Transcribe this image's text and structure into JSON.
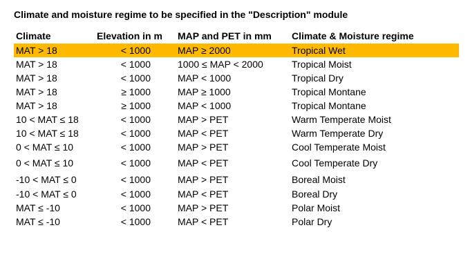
{
  "title": "Climate and moisture regime to be specified in the \"Description\" module",
  "headers": {
    "climate": "Climate",
    "elevation": "Elevation in m",
    "map_pet": "MAP and PET in mm",
    "regime": "Climate & Moisture regime"
  },
  "rows": [
    {
      "climate": "MAT > 18",
      "elevation": "< 1000",
      "map_pet": "MAP ≥ 2000",
      "regime": "Tropical Wet"
    },
    {
      "climate": "MAT > 18",
      "elevation": "< 1000",
      "map_pet": "1000 ≤ MAP < 2000",
      "regime": "Tropical Moist"
    },
    {
      "climate": "MAT > 18",
      "elevation": "< 1000",
      "map_pet": "MAP < 1000",
      "regime": "Tropical Dry"
    },
    {
      "climate": "MAT > 18",
      "elevation": "≥ 1000",
      "map_pet": "MAP ≥ 1000",
      "regime": "Tropical Montane"
    },
    {
      "climate": "MAT > 18",
      "elevation": "≥ 1000",
      "map_pet": "MAP < 1000",
      "regime": "Tropical Montane"
    },
    {
      "climate": "10 < MAT ≤ 18",
      "elevation": "< 1000",
      "map_pet": "MAP > PET",
      "regime": "Warm Temperate Moist"
    },
    {
      "climate": "10 < MAT ≤ 18",
      "elevation": "< 1000",
      "map_pet": "MAP < PET",
      "regime": "Warm Temperate Dry"
    },
    {
      "climate": "0 < MAT ≤ 10",
      "elevation": "< 1000",
      "map_pet": "MAP > PET",
      "regime": "Cool Temperate Moist"
    },
    {
      "climate": "0 < MAT ≤ 10",
      "elevation": "< 1000",
      "map_pet": "MAP < PET",
      "regime": "Cool Temperate Dry"
    },
    {
      "climate": "-10 < MAT ≤ 0",
      "elevation": "< 1000",
      "map_pet": "MAP > PET",
      "regime": "Boreal Moist"
    },
    {
      "climate": "-10 < MAT ≤ 0",
      "elevation": "< 1000",
      "map_pet": "MAP < PET",
      "regime": "Boreal Dry"
    },
    {
      "climate": "MAT ≤ -10",
      "elevation": "< 1000",
      "map_pet": "MAP > PET",
      "regime": "Polar Moist"
    },
    {
      "climate": "MAT ≤ -10",
      "elevation": "< 1000",
      "map_pet": "MAP < PET",
      "regime": "Polar Dry"
    }
  ],
  "highlight_color": "#ffba00"
}
